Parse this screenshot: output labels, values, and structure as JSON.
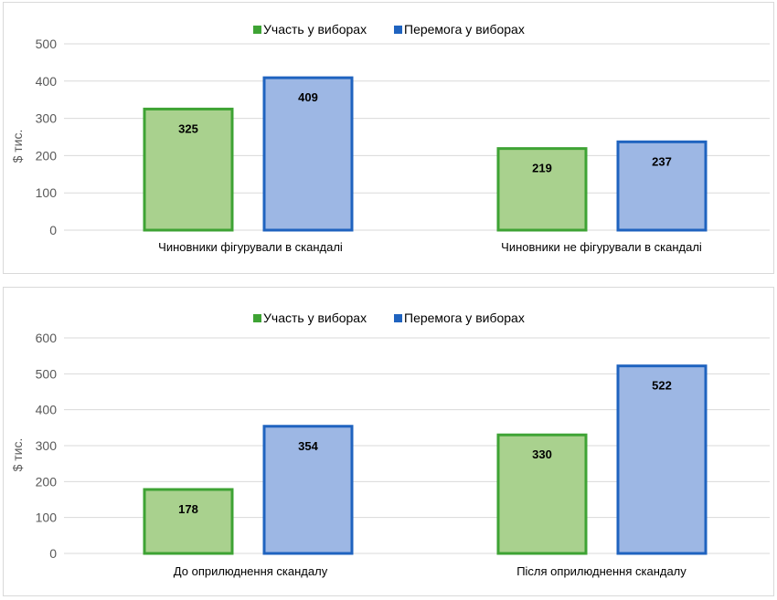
{
  "colors": {
    "participation_fill": "#a9d18e",
    "participation_stroke": "#3ea334",
    "win_fill": "#9db7e4",
    "win_stroke": "#1f63bf",
    "grid": "#d9d9d9"
  },
  "chart_data": [
    {
      "type": "bar",
      "title": "",
      "xlabel": "",
      "ylabel": "$ тис.",
      "ylim": [
        0,
        500
      ],
      "yticks": [
        0,
        100,
        200,
        300,
        400,
        500
      ],
      "grid": true,
      "legend": "top",
      "categories": [
        "Чиновники  фігурували в скандалі",
        "Чиновники  не фігурували  в скандалі"
      ],
      "series": [
        {
          "name": "Участь  у виборах",
          "values": [
            325,
            219
          ]
        },
        {
          "name": "Перемога  у виборах",
          "values": [
            409,
            237
          ]
        }
      ]
    },
    {
      "type": "bar",
      "title": "",
      "xlabel": "",
      "ylabel": "$ тис.",
      "ylim": [
        0,
        600
      ],
      "yticks": [
        0,
        100,
        200,
        300,
        400,
        500,
        600
      ],
      "grid": true,
      "legend": "top",
      "categories": [
        "До оприлюднення  скандалу",
        "Після оприлюднення  скандалу"
      ],
      "series": [
        {
          "name": "Участь  у виборах",
          "values": [
            178,
            330
          ]
        },
        {
          "name": "Перемога  у виборах",
          "values": [
            354,
            522
          ]
        }
      ]
    }
  ]
}
